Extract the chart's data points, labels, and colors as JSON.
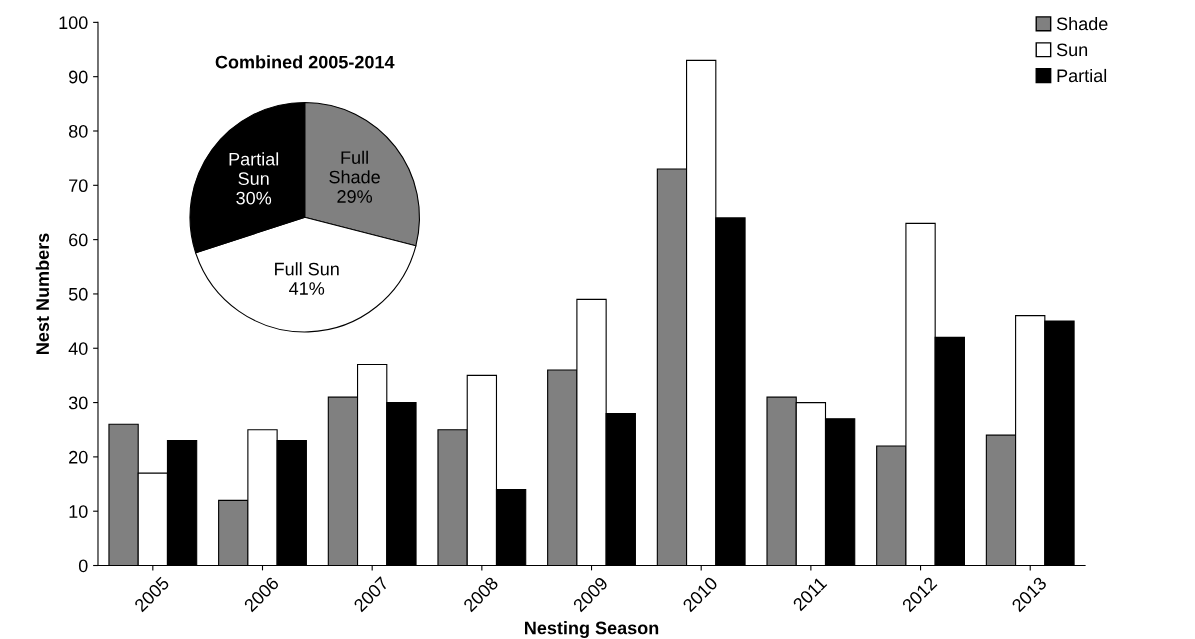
{
  "chart_data": [
    {
      "type": "bar",
      "xlabel": "Nesting Season",
      "ylabel": "Nest Numbers",
      "categories": [
        "2005",
        "2006",
        "2007",
        "2008",
        "2009",
        "2010",
        "2011",
        "2012",
        "2013"
      ],
      "series": [
        {
          "name": "Shade",
          "color": "#808080",
          "values": [
            26,
            12,
            31,
            25,
            36,
            73,
            31,
            22,
            24
          ]
        },
        {
          "name": "Sun",
          "color": "#ffffff",
          "values": [
            17,
            25,
            37,
            35,
            49,
            93,
            30,
            63,
            46
          ]
        },
        {
          "name": "Partial",
          "color": "#000000",
          "values": [
            23,
            23,
            30,
            14,
            28,
            64,
            27,
            42,
            45
          ]
        }
      ],
      "ylim": [
        0,
        100
      ],
      "yticks": [
        0,
        10,
        20,
        30,
        40,
        50,
        60,
        70,
        80,
        90,
        100
      ],
      "grid": false,
      "legend": "top right"
    },
    {
      "type": "pie",
      "title": "Combined 2005-2014",
      "categories": [
        "Full\nShade",
        "Full Sun",
        "Partial\nSun"
      ],
      "values": [
        29,
        41,
        30
      ],
      "value_labels": [
        "29%",
        "41%",
        "30%"
      ],
      "colors": [
        "#808080",
        "#ffffff",
        "#000000"
      ]
    }
  ]
}
